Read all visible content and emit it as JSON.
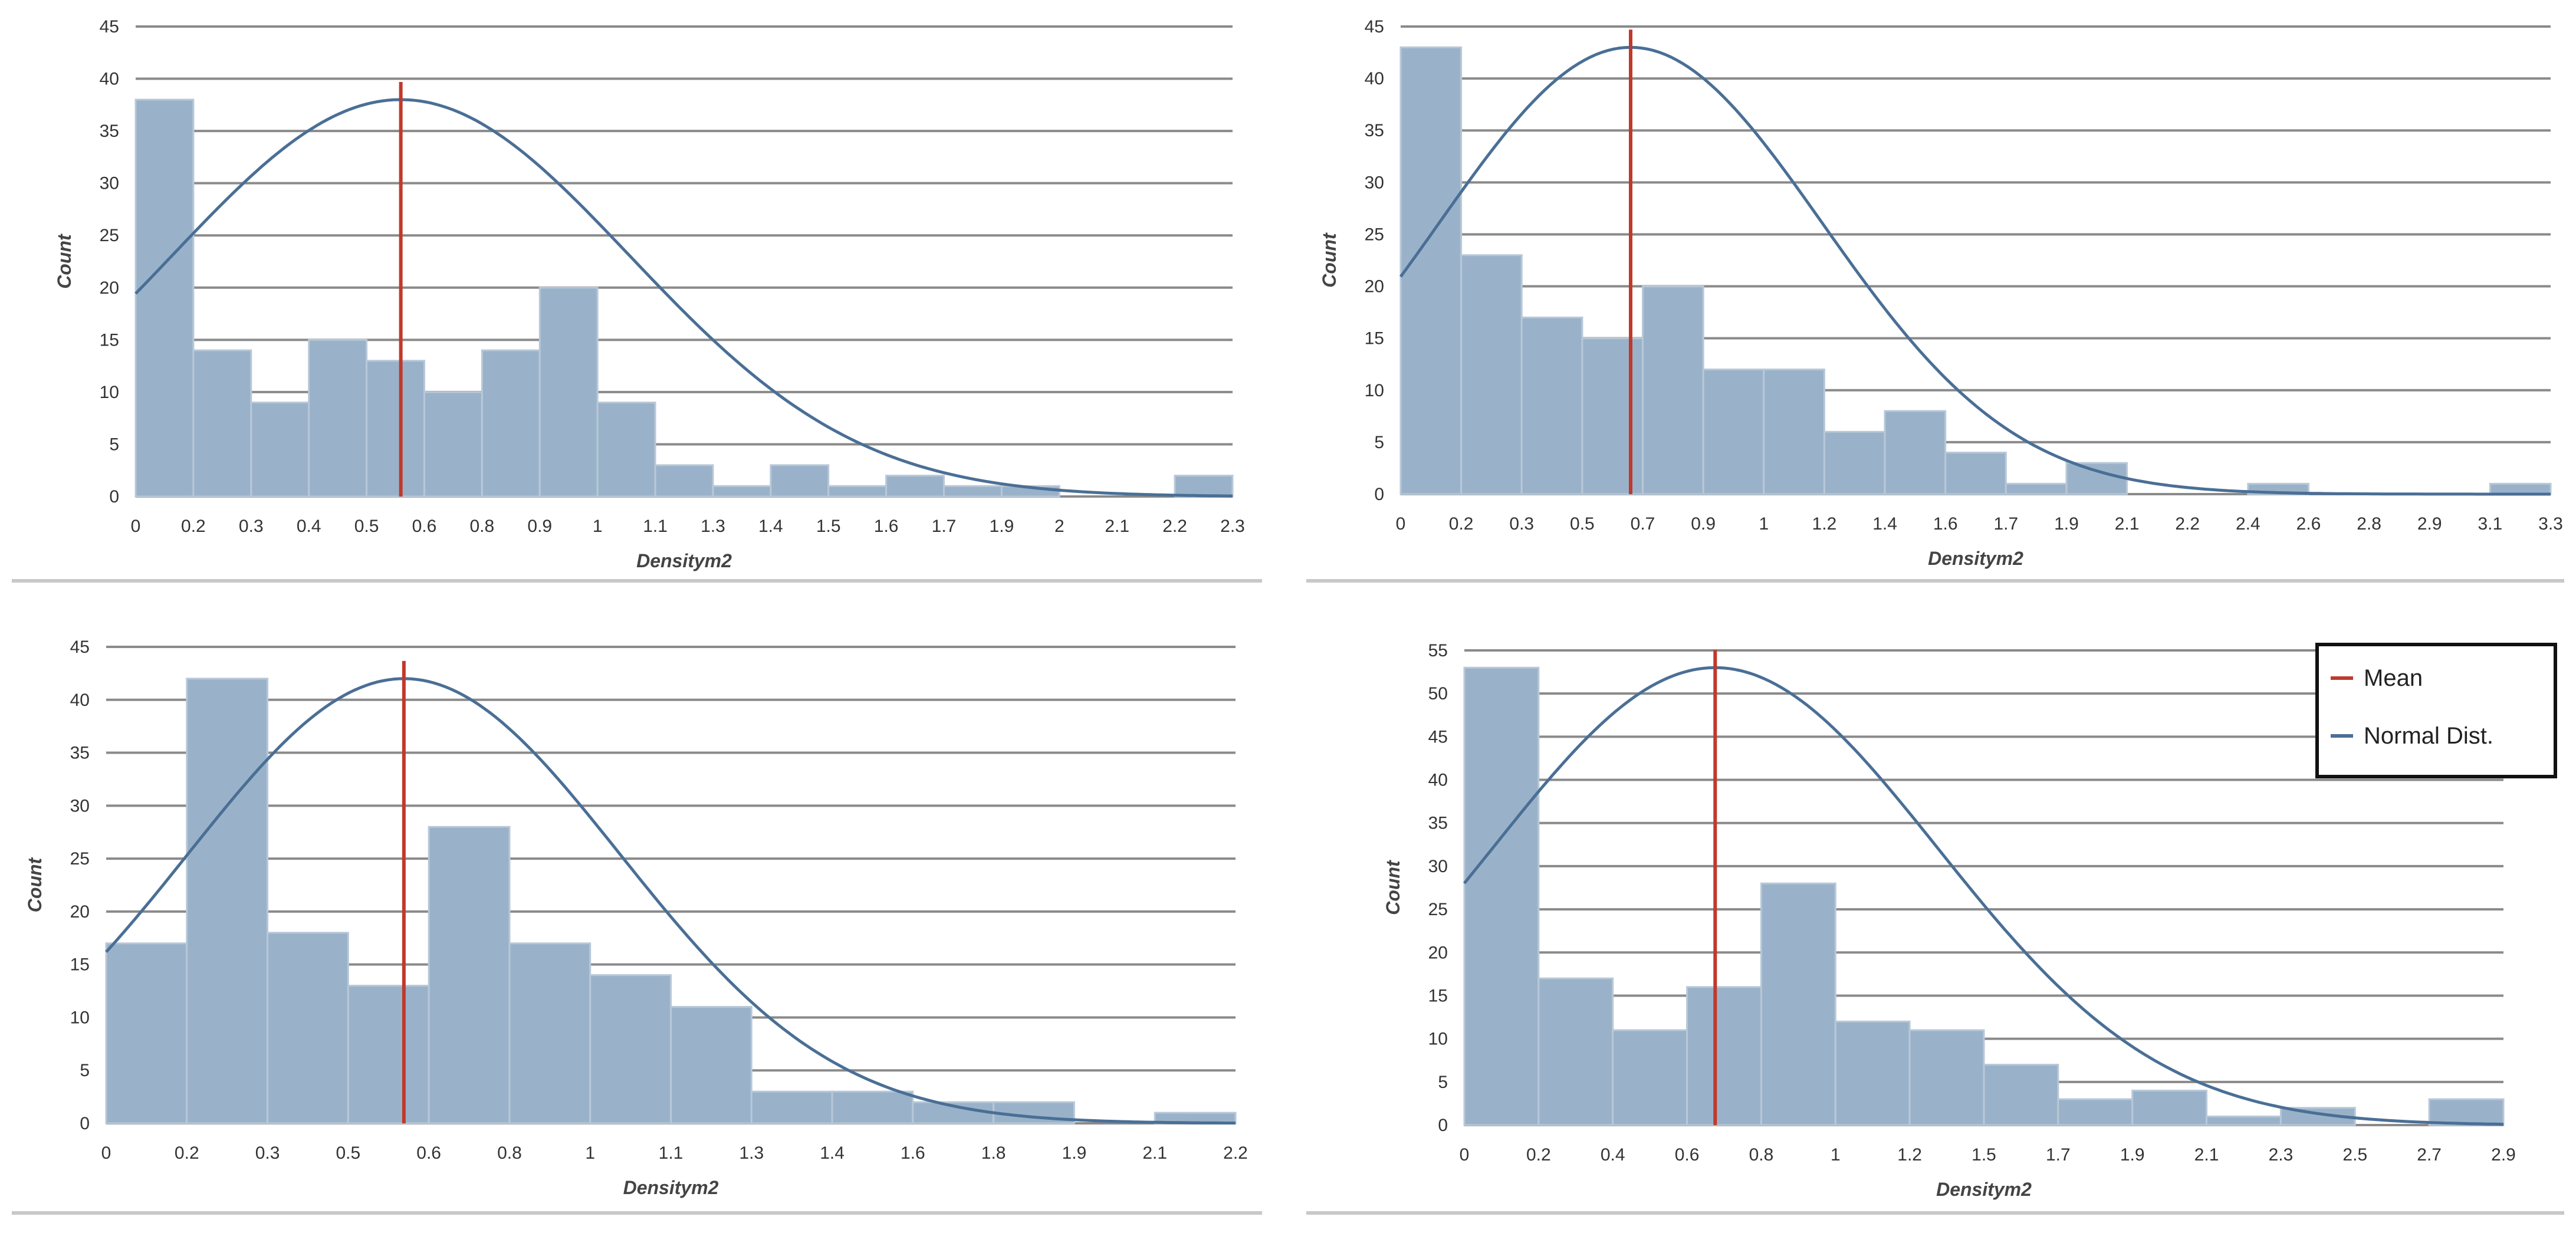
{
  "colors": {
    "bar": "#9ab2c9",
    "curve": "#4a6f96",
    "mean": "#c0392b",
    "grid": "#8a8a8a"
  },
  "legend": {
    "items": [
      {
        "label": "Mean",
        "color": "#c0392b"
      },
      {
        "label": "Normal Dist.",
        "color": "#4a6f96"
      }
    ]
  },
  "chart_data": [
    {
      "type": "bar",
      "title": "",
      "xlabel": "Densitym2",
      "ylabel": "Count",
      "ylim": [
        0,
        45
      ],
      "yticks": [
        0,
        5,
        10,
        15,
        20,
        25,
        30,
        35,
        40,
        45
      ],
      "xtick_labels": [
        "0",
        "0.2",
        "0.3",
        "0.4",
        "0.5",
        "0.6",
        "0.8",
        "0.9",
        "1",
        "1.1",
        "1.3",
        "1.4",
        "1.5",
        "1.6",
        "1.7",
        "1.9",
        "2",
        "2.1",
        "2.2",
        "2.3"
      ],
      "values": [
        38,
        14,
        9,
        15,
        13,
        10,
        14,
        20,
        9,
        3,
        1,
        3,
        1,
        2,
        1,
        1,
        0,
        0,
        2
      ],
      "mean": 0.556,
      "normal_peak": 38,
      "normal_sd": 0.48,
      "xmax": 2.3
    },
    {
      "type": "bar",
      "title": "",
      "xlabel": "Densitym2",
      "ylabel": "Count",
      "ylim": [
        0,
        45
      ],
      "yticks": [
        0,
        5,
        10,
        15,
        20,
        25,
        30,
        35,
        40,
        45
      ],
      "xtick_labels": [
        "0",
        "0.2",
        "0.3",
        "0.5",
        "0.7",
        "0.9",
        "1",
        "1.2",
        "1.4",
        "1.6",
        "1.7",
        "1.9",
        "2.1",
        "2.2",
        "2.4",
        "2.6",
        "2.8",
        "2.9",
        "3.1",
        "3.3"
      ],
      "values": [
        43,
        23,
        17,
        15,
        20,
        12,
        12,
        6,
        8,
        4,
        1,
        3,
        0,
        0,
        1,
        0,
        0,
        0,
        1
      ],
      "mean": 0.66,
      "normal_peak": 43,
      "normal_sd": 0.55,
      "xmax": 3.3
    },
    {
      "type": "bar",
      "title": "",
      "xlabel": "Densitym2",
      "ylabel": "Count",
      "ylim": [
        0,
        45
      ],
      "yticks": [
        0,
        5,
        10,
        15,
        20,
        25,
        30,
        35,
        40,
        45
      ],
      "xtick_labels": [
        "0",
        "0.2",
        "0.3",
        "0.5",
        "0.6",
        "0.8",
        "1",
        "1.1",
        "1.3",
        "1.4",
        "1.6",
        "1.8",
        "1.9",
        "2.1",
        "2.2"
      ],
      "values": [
        17,
        42,
        18,
        13,
        28,
        17,
        14,
        11,
        3,
        3,
        2,
        2,
        0,
        1
      ],
      "mean": 0.58,
      "normal_peak": 42,
      "normal_sd": 0.42,
      "xmax": 2.2
    },
    {
      "type": "bar",
      "title": "",
      "xlabel": "Densitym2",
      "ylabel": "Count",
      "ylim": [
        0,
        55
      ],
      "yticks": [
        0,
        5,
        10,
        15,
        20,
        25,
        30,
        35,
        40,
        45,
        50,
        55
      ],
      "xtick_labels": [
        "0",
        "0.2",
        "0.4",
        "0.6",
        "0.8",
        "1",
        "1.2",
        "1.5",
        "1.7",
        "1.9",
        "2.1",
        "2.3",
        "2.5",
        "2.7",
        "2.9"
      ],
      "values": [
        53,
        17,
        11,
        16,
        28,
        12,
        11,
        7,
        3,
        4,
        1,
        2,
        0,
        3
      ],
      "mean": 0.7,
      "normal_peak": 53,
      "normal_sd": 0.62,
      "xmax": 2.9
    }
  ]
}
